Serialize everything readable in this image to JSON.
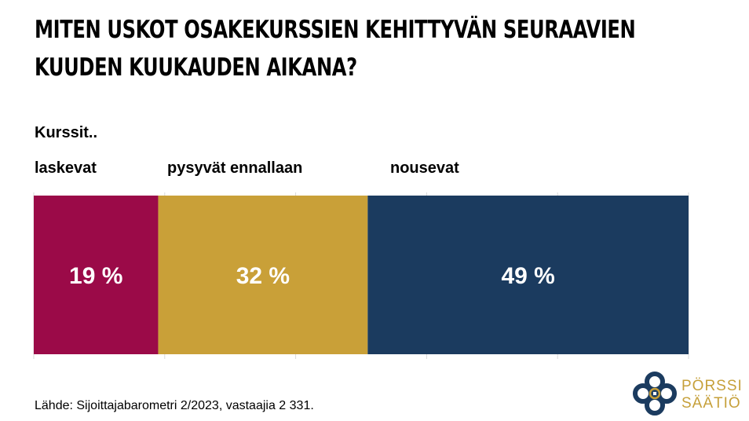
{
  "title": "MITEN USKOT OSAKEKURSSIEN KEHITTYVÄN SEURAAVIEN KUUDEN KUUKAUDEN AIKANA?",
  "subtitle": "Kurssit..",
  "source": "Lähde: Sijoittajabarometri 2/2023, vastaajia 2 331.",
  "logo": {
    "line1": "PÖRSSI",
    "line2": "SÄÄTIÖ",
    "icon": "knot-logo-icon"
  },
  "colors": {
    "laskevat": "#9b0a48",
    "pysyvat": "#c9a038",
    "nousevat": "#1b3b5f",
    "label": "#ffffff",
    "grid": "#d9d9d9"
  },
  "chart_data": {
    "type": "bar",
    "orientation": "horizontal-stacked",
    "series": [
      {
        "name": "laskevat",
        "value": 19,
        "label": "19 %"
      },
      {
        "name": "pysyvät ennallaan",
        "value": 32,
        "label": "32 %"
      },
      {
        "name": "nousevat",
        "value": 49,
        "label": "49 %"
      }
    ],
    "unit": "%",
    "xlim": [
      0,
      100
    ],
    "grid": true
  }
}
